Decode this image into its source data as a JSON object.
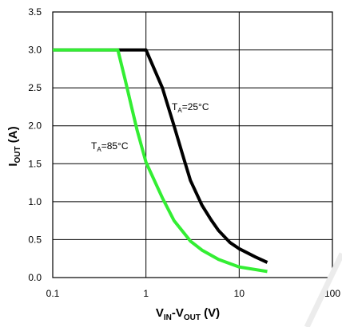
{
  "chart_data": {
    "type": "line",
    "xscale": "log",
    "xlim": [
      0.1,
      100
    ],
    "ylim": [
      0,
      3.5
    ],
    "grid": true,
    "x_ticks": [
      {
        "value": 0.1,
        "label": "0.1"
      },
      {
        "value": 1,
        "label": "1"
      },
      {
        "value": 10,
        "label": "10"
      },
      {
        "value": 100,
        "label": "100"
      }
    ],
    "y_ticks": [
      {
        "value": 0,
        "label": "0.0"
      },
      {
        "value": 0.5,
        "label": "0.5"
      },
      {
        "value": 1,
        "label": "1.0"
      },
      {
        "value": 1.5,
        "label": "1.5"
      },
      {
        "value": 2,
        "label": "2.0"
      },
      {
        "value": 2.5,
        "label": "2.5"
      },
      {
        "value": 3,
        "label": "3.0"
      },
      {
        "value": 3.5,
        "label": "3.5"
      }
    ],
    "xlabel": {
      "a": "V",
      "a_sub": "IN",
      "sep": "-V",
      "b_sub": "OUT",
      "unit": " (V)"
    },
    "ylabel": {
      "a": "I",
      "a_sub": "OUT",
      "unit": " (A)"
    },
    "series": [
      {
        "label": {
          "prefix": "T",
          "sub": "A",
          "suffix": "=25°C"
        },
        "color": "#000000",
        "x": [
          0.1,
          1.0,
          1.5,
          2.0,
          2.5,
          3.0,
          4.0,
          5.0,
          6.0,
          8.0,
          10.0,
          15.0,
          20.0
        ],
        "y": [
          3.0,
          3.0,
          2.5,
          2.0,
          1.6,
          1.28,
          0.95,
          0.76,
          0.62,
          0.46,
          0.38,
          0.27,
          0.2
        ]
      },
      {
        "label": {
          "prefix": "T",
          "sub": "A",
          "suffix": "=85°C"
        },
        "color": "#33ee33",
        "x": [
          0.1,
          0.5,
          0.6,
          0.7,
          0.8,
          1.0,
          1.5,
          2.0,
          3.0,
          4.0,
          6.0,
          10.0,
          20.0
        ],
        "y": [
          3.0,
          3.0,
          2.6,
          2.25,
          1.95,
          1.52,
          1.05,
          0.75,
          0.48,
          0.36,
          0.24,
          0.14,
          0.08
        ]
      }
    ]
  }
}
